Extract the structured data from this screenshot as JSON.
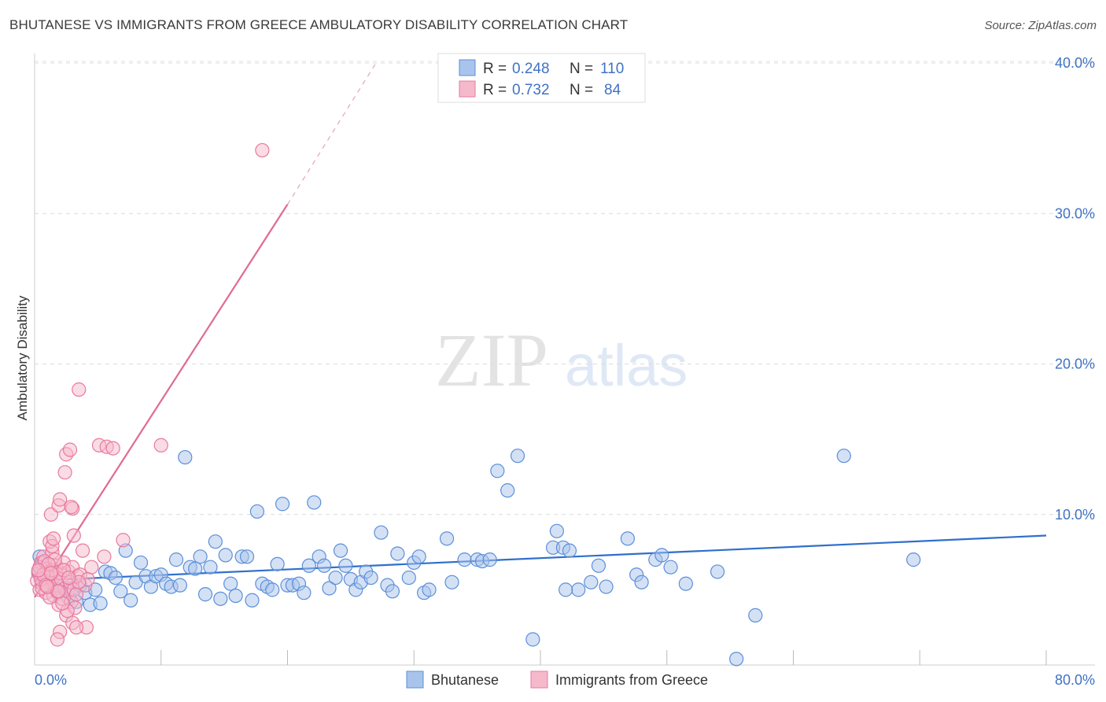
{
  "title": "BHUTANESE VS IMMIGRANTS FROM GREECE AMBULATORY DISABILITY CORRELATION CHART",
  "source": "Source: ZipAtlas.com",
  "watermark": {
    "zip": "ZIP",
    "atlas": "atlas"
  },
  "chart_data": {
    "type": "scatter",
    "ylabel": "Ambulatory Disability",
    "xlim": [
      0,
      80
    ],
    "ylim": [
      0,
      40
    ],
    "x_tick_labels": [
      "0.0%",
      "80.0%"
    ],
    "y_ticks": [
      10,
      20,
      30,
      40
    ],
    "y_tick_labels": [
      "10.0%",
      "20.0%",
      "30.0%",
      "40.0%"
    ],
    "grid": true,
    "legend_position": "top-center",
    "stats": [
      {
        "r_label": "R =",
        "r": "0.248",
        "n_label": "N =",
        "n": "110"
      },
      {
        "r_label": "R =",
        "r": "0.732",
        "n_label": "N =",
        "n": "84"
      }
    ],
    "series": [
      {
        "name": "Bhutanese",
        "color": "#5b8fd9",
        "fill": "#a9c4ec",
        "trend": {
          "x0": 0,
          "y0": 5.6,
          "x1": 80,
          "y1": 8.6
        },
        "points": [
          [
            0.3,
            6.1
          ],
          [
            0.5,
            6.4
          ],
          [
            0.7,
            5.8
          ],
          [
            0.9,
            6.0
          ],
          [
            1.1,
            5.4
          ],
          [
            0.4,
            7.2
          ],
          [
            0.6,
            6.8
          ],
          [
            1.3,
            6.2
          ],
          [
            1.5,
            5.2
          ],
          [
            1.8,
            4.8
          ],
          [
            2.1,
            5.5
          ],
          [
            2.4,
            5.0
          ],
          [
            2.7,
            4.4
          ],
          [
            3.0,
            5.1
          ],
          [
            3.3,
            4.2
          ],
          [
            3.6,
            5.3
          ],
          [
            4.0,
            4.8
          ],
          [
            4.4,
            4.0
          ],
          [
            4.8,
            5.0
          ],
          [
            5.2,
            4.1
          ],
          [
            5.6,
            6.2
          ],
          [
            6.0,
            6.1
          ],
          [
            6.4,
            5.8
          ],
          [
            6.8,
            4.9
          ],
          [
            7.2,
            7.6
          ],
          [
            7.6,
            4.3
          ],
          [
            8.0,
            5.5
          ],
          [
            8.4,
            6.8
          ],
          [
            8.8,
            5.9
          ],
          [
            9.2,
            5.2
          ],
          [
            9.6,
            5.9
          ],
          [
            10.0,
            6.0
          ],
          [
            10.4,
            5.4
          ],
          [
            10.8,
            5.2
          ],
          [
            11.2,
            7.0
          ],
          [
            11.5,
            5.3
          ],
          [
            11.9,
            13.8
          ],
          [
            12.3,
            6.5
          ],
          [
            12.7,
            6.4
          ],
          [
            13.1,
            7.2
          ],
          [
            13.5,
            4.7
          ],
          [
            13.9,
            6.5
          ],
          [
            14.3,
            8.2
          ],
          [
            14.7,
            4.4
          ],
          [
            15.1,
            7.3
          ],
          [
            15.5,
            5.4
          ],
          [
            15.9,
            4.6
          ],
          [
            16.4,
            7.2
          ],
          [
            16.8,
            7.2
          ],
          [
            17.2,
            4.3
          ],
          [
            17.6,
            10.2
          ],
          [
            18.0,
            5.4
          ],
          [
            18.4,
            5.2
          ],
          [
            18.8,
            5.0
          ],
          [
            19.2,
            6.7
          ],
          [
            19.6,
            10.7
          ],
          [
            20.0,
            5.3
          ],
          [
            20.4,
            5.3
          ],
          [
            20.9,
            5.4
          ],
          [
            21.3,
            4.8
          ],
          [
            21.7,
            6.6
          ],
          [
            22.1,
            10.8
          ],
          [
            22.5,
            7.2
          ],
          [
            22.9,
            6.6
          ],
          [
            23.3,
            5.1
          ],
          [
            23.8,
            5.8
          ],
          [
            24.2,
            7.6
          ],
          [
            24.6,
            6.6
          ],
          [
            25.0,
            5.7
          ],
          [
            25.4,
            5.0
          ],
          [
            25.8,
            5.5
          ],
          [
            26.2,
            6.2
          ],
          [
            26.6,
            5.8
          ],
          [
            27.4,
            8.8
          ],
          [
            27.9,
            5.3
          ],
          [
            28.3,
            4.9
          ],
          [
            28.7,
            7.4
          ],
          [
            29.6,
            5.8
          ],
          [
            30.0,
            6.8
          ],
          [
            30.4,
            7.2
          ],
          [
            30.8,
            4.8
          ],
          [
            31.2,
            5.0
          ],
          [
            32.6,
            8.4
          ],
          [
            33.0,
            5.5
          ],
          [
            34.0,
            7.0
          ],
          [
            35.0,
            7.0
          ],
          [
            35.4,
            6.9
          ],
          [
            36.0,
            7.0
          ],
          [
            36.6,
            12.9
          ],
          [
            37.4,
            11.6
          ],
          [
            38.2,
            13.9
          ],
          [
            39.4,
            1.7
          ],
          [
            41.0,
            7.8
          ],
          [
            41.3,
            8.9
          ],
          [
            41.8,
            7.8
          ],
          [
            42.3,
            7.6
          ],
          [
            43.0,
            5.0
          ],
          [
            44.0,
            5.5
          ],
          [
            44.6,
            6.6
          ],
          [
            45.2,
            5.2
          ],
          [
            46.9,
            8.4
          ],
          [
            47.6,
            6.0
          ],
          [
            48.0,
            5.5
          ],
          [
            49.1,
            7.0
          ],
          [
            49.6,
            7.3
          ],
          [
            50.3,
            6.5
          ],
          [
            51.5,
            5.4
          ],
          [
            54.0,
            6.2
          ],
          [
            55.5,
            0.4
          ],
          [
            57.0,
            3.3
          ],
          [
            69.5,
            7.0
          ],
          [
            64.0,
            13.9
          ],
          [
            42.0,
            5.0
          ]
        ]
      },
      {
        "name": "Immigrants from Greece",
        "color": "#e8799e",
        "fill": "#f5b9cc",
        "trend": {
          "x0": 0,
          "y0": 4.5,
          "x1": 20,
          "y1": 30.6
        },
        "trend_dashed": {
          "x0": 20,
          "y0": 30.6,
          "x1": 27,
          "y1": 40
        },
        "points": [
          [
            0.2,
            5.6
          ],
          [
            0.3,
            6.2
          ],
          [
            0.4,
            5.0
          ],
          [
            0.5,
            6.8
          ],
          [
            0.6,
            5.4
          ],
          [
            0.7,
            7.2
          ],
          [
            0.8,
            5.8
          ],
          [
            0.9,
            4.8
          ],
          [
            1.0,
            6.4
          ],
          [
            1.1,
            5.2
          ],
          [
            1.2,
            6.0
          ],
          [
            1.3,
            5.5
          ],
          [
            1.4,
            7.5
          ],
          [
            1.5,
            4.6
          ],
          [
            1.6,
            5.9
          ],
          [
            1.7,
            6.6
          ],
          [
            1.8,
            5.3
          ],
          [
            1.9,
            4.0
          ],
          [
            2.0,
            6.1
          ],
          [
            2.1,
            5.7
          ],
          [
            2.2,
            4.4
          ],
          [
            2.3,
            6.8
          ],
          [
            2.4,
            5.1
          ],
          [
            2.5,
            3.3
          ],
          [
            2.6,
            4.9
          ],
          [
            2.7,
            6.2
          ],
          [
            2.8,
            5.5
          ],
          [
            2.9,
            4.2
          ],
          [
            3.0,
            6.5
          ],
          [
            3.1,
            5.0
          ],
          [
            3.2,
            3.8
          ],
          [
            3.3,
            4.7
          ],
          [
            3.4,
            5.9
          ],
          [
            3.6,
            6.0
          ],
          [
            3.8,
            7.6
          ],
          [
            4.0,
            5.3
          ],
          [
            4.2,
            5.7
          ],
          [
            0.4,
            6.5
          ],
          [
            0.6,
            5.1
          ],
          [
            0.8,
            6.9
          ],
          [
            1.0,
            5.9
          ],
          [
            1.2,
            4.5
          ],
          [
            1.4,
            6.3
          ],
          [
            1.6,
            7.0
          ],
          [
            1.8,
            4.9
          ],
          [
            0.5,
            5.7
          ],
          [
            0.7,
            6.0
          ],
          [
            0.9,
            5.3
          ],
          [
            1.1,
            6.7
          ],
          [
            1.3,
            6.1
          ],
          [
            1.2,
            8.2
          ],
          [
            1.4,
            7.9
          ],
          [
            1.5,
            8.4
          ],
          [
            1.3,
            10.0
          ],
          [
            1.9,
            10.6
          ],
          [
            2.0,
            11.0
          ],
          [
            2.4,
            12.8
          ],
          [
            2.5,
            14.0
          ],
          [
            2.8,
            14.3
          ],
          [
            3.0,
            10.4
          ],
          [
            2.9,
            10.5
          ],
          [
            3.1,
            8.6
          ],
          [
            3.5,
            18.3
          ],
          [
            5.1,
            14.6
          ],
          [
            5.7,
            14.5
          ],
          [
            6.2,
            14.4
          ],
          [
            10.0,
            14.6
          ],
          [
            7.0,
            8.3
          ],
          [
            5.5,
            7.2
          ],
          [
            4.5,
            6.5
          ],
          [
            4.1,
            2.5
          ],
          [
            2.0,
            2.2
          ],
          [
            1.8,
            1.7
          ],
          [
            3.0,
            2.8
          ],
          [
            3.3,
            2.5
          ],
          [
            2.6,
            3.6
          ],
          [
            2.2,
            4.1
          ],
          [
            1.9,
            4.9
          ],
          [
            3.5,
            5.5
          ],
          [
            2.3,
            6.3
          ],
          [
            1.0,
            5.2
          ],
          [
            0.3,
            6.3
          ],
          [
            18.0,
            34.2
          ],
          [
            2.7,
            5.8
          ]
        ]
      }
    ]
  }
}
